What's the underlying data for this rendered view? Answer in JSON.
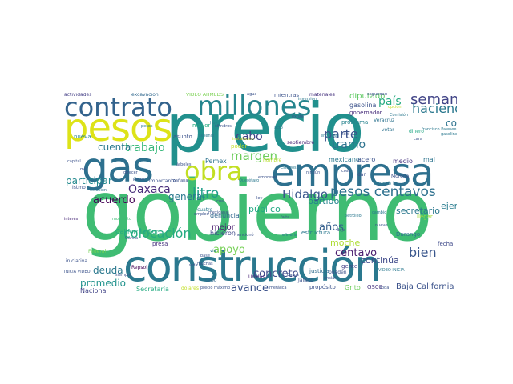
{
  "words": [
    {
      "text": "gobierno",
      "color": "#3fbc73"
    },
    {
      "text": "precio",
      "color": "#21908d"
    },
    {
      "text": "construcción",
      "color": "#2a788e"
    },
    {
      "text": "empresa",
      "color": "#2d708e"
    },
    {
      "text": "gas",
      "color": "#2d708e"
    },
    {
      "text": "pesos",
      "color": "#dde318"
    },
    {
      "text": "millones",
      "color": "#25858e"
    },
    {
      "text": "contrato",
      "color": "#33638d"
    },
    {
      "text": "obra",
      "color": "#c2df23"
    },
    {
      "text": "pesos centavos",
      "color": "#2d708e"
    },
    {
      "text": "litro",
      "color": "#1f9e89"
    },
    {
      "text": "Hidalgo",
      "color": "#39568c"
    },
    {
      "text": "colocación",
      "color": "#25ab82"
    },
    {
      "text": "margen",
      "color": "#6ccd5a"
    },
    {
      "text": "semana",
      "color": "#414487"
    },
    {
      "text": "haciendo",
      "color": "#2a788e"
    },
    {
      "text": "país",
      "color": "#25ab82"
    },
    {
      "text": "parte",
      "color": "#3b528b"
    },
    {
      "text": "tramo",
      "color": "#2c728e"
    },
    {
      "text": "trabajo",
      "color": "#35b779"
    },
    {
      "text": "cuenta",
      "color": "#2a788e"
    },
    {
      "text": "cabo",
      "color": "#404387"
    },
    {
      "text": "acuerdo",
      "color": "#440154"
    },
    {
      "text": "Oaxaca",
      "color": "#472c7a"
    },
    {
      "text": "general",
      "color": "#2a788e"
    },
    {
      "text": "participar",
      "color": "#23898e"
    },
    {
      "text": "corrupción",
      "color": "#2c728e"
    },
    {
      "text": "ejemplo",
      "color": "#287c8e"
    },
    {
      "text": "apoyo",
      "color": "#75d054"
    },
    {
      "text": "concreto",
      "color": "#3e4a89"
    },
    {
      "text": "centavo",
      "color": "#481a6c"
    },
    {
      "text": "bien",
      "color": "#39568c"
    },
    {
      "text": "deuda",
      "color": "#2a788e"
    },
    {
      "text": "promedio",
      "color": "#20928c"
    },
    {
      "text": "avance",
      "color": "#3b528b"
    },
    {
      "text": "años",
      "color": "#355f8d"
    },
    {
      "text": "moche",
      "color": "#addc30"
    },
    {
      "text": "secretario",
      "color": "#2a788e"
    },
    {
      "text": "partido",
      "color": "#25848e"
    },
    {
      "text": "público",
      "color": "#23a983"
    },
    {
      "text": "continúa",
      "color": "#3e4989"
    },
    {
      "text": "mejor",
      "color": "#481b6d"
    },
    {
      "text": "hicieron",
      "color": "#3f4889"
    },
    {
      "text": "denuncia",
      "color": "#31688e"
    },
    {
      "text": "Baja California",
      "color": "#3b528b"
    },
    {
      "text": "Grito",
      "color": "#6ccd5a"
    },
    {
      "text": "Secretaría",
      "color": "#25ab82"
    },
    {
      "text": "Nacional",
      "color": "#414487"
    },
    {
      "text": "Pemex",
      "color": "#2c728e"
    },
    {
      "text": "diputado",
      "color": "#5ec962"
    },
    {
      "text": "gasolina",
      "color": "#3b528b"
    },
    {
      "text": "gobernador",
      "color": "#472d7b"
    },
    {
      "text": "problema",
      "color": "#26828e"
    },
    {
      "text": "mexicano",
      "color": "#2a788e"
    },
    {
      "text": "medio",
      "color": "#46337f"
    },
    {
      "text": "mal",
      "color": "#2c738e"
    },
    {
      "text": "acero",
      "color": "#3b528b"
    },
    {
      "text": "llegar",
      "color": "#a0da39"
    },
    {
      "text": "fecha",
      "color": "#3e4989"
    },
    {
      "text": "Durango",
      "color": "#2d718e"
    },
    {
      "text": "gente",
      "color": "#433e85"
    },
    {
      "text": "justicia",
      "color": "#2f6c8e"
    },
    {
      "text": "mientras",
      "color": "#3b528b"
    },
    {
      "text": "estructura",
      "color": "#2a788e"
    },
    {
      "text": "mayor",
      "color": "#25ab82"
    },
    {
      "text": "nueva",
      "color": "#26828e"
    },
    {
      "text": "asunto",
      "color": "#3b528b"
    },
    {
      "text": "importante",
      "color": "#3b528b"
    },
    {
      "text": "septiembre",
      "color": "#482576"
    },
    {
      "text": "hombre",
      "color": "#b5de2b"
    },
    {
      "text": "poder",
      "color": "#c2df23"
    },
    {
      "text": "cuatro",
      "color": "#2a788e"
    },
    {
      "text": "presa",
      "color": "#46327e"
    },
    {
      "text": "servicio",
      "color": "#3fbc73"
    },
    {
      "text": "Federal",
      "color": "#73d056"
    },
    {
      "text": "iniciativa",
      "color": "#3b528b"
    },
    {
      "text": "Istmo",
      "color": "#3b528b"
    },
    {
      "text": "Repsol",
      "color": "#440154"
    },
    {
      "text": "cabo",
      "color": "#31688e"
    },
    {
      "text": "mexicana",
      "color": "#3b528b"
    },
    {
      "text": "Unidos",
      "color": "#482576"
    },
    {
      "text": "pueden",
      "color": "#3b528b"
    },
    {
      "text": "Jalisco",
      "color": "#3b528b"
    },
    {
      "text": "propósito",
      "color": "#3b528b"
    },
    {
      "text": "GS00",
      "color": "#46327e"
    },
    {
      "text": "Morena",
      "color": "#3b528b"
    },
    {
      "text": "Veracruz",
      "color": "#2c728e"
    },
    {
      "text": "Comisión",
      "color": "#2a788e"
    },
    {
      "text": "dinero",
      "color": "#22a884"
    },
    {
      "text": "votar",
      "color": "#2c728e"
    },
    {
      "text": "California Sur",
      "color": "#25ab82"
    },
    {
      "text": "interés",
      "color": "#482878"
    },
    {
      "text": "estación",
      "color": "#2c728e"
    },
    {
      "text": "actividades",
      "color": "#433e85"
    },
    {
      "text": "excavación",
      "color": "#31688e"
    },
    {
      "text": "materiales",
      "color": "#46327e"
    },
    {
      "text": "seguridad",
      "color": "#3b528b"
    },
    {
      "text": "inversión",
      "color": "#2a788e"
    },
    {
      "text": "opción",
      "color": "#c2df23"
    },
    {
      "text": "VIDEO AHMEDS",
      "color": "#7ad151"
    },
    {
      "text": "VIDEO INICIA",
      "color": "#2a788e"
    },
    {
      "text": "INICIA VIDEO",
      "color": "#3b528b"
    },
    {
      "text": "dólares",
      "color": "#c2df23"
    },
    {
      "text": "precio máximo",
      "color": "#3b528b"
    },
    {
      "text": "metálica",
      "color": "#3b528b"
    },
    {
      "text": "toda",
      "color": "#3b528b"
    },
    {
      "text": "Querétaro",
      "color": "#2a788e"
    },
    {
      "text": "vía",
      "color": "#2a788e"
    },
    {
      "text": "mañana",
      "color": "#3b528b"
    },
    {
      "text": "árboles",
      "color": "#3b528b"
    },
    {
      "text": "petróleo",
      "color": "#2a788e"
    },
    {
      "text": "cambio",
      "color": "#2a788e"
    },
    {
      "text": "nuevo",
      "color": "#3b528b"
    },
    {
      "text": "dar",
      "color": "#3b528b"
    },
    {
      "text": "cilindros",
      "color": "#3b528b"
    },
    {
      "text": "agua",
      "color": "#3b528b"
    },
    {
      "text": "acto",
      "color": "#2a788e"
    },
    {
      "text": "hoy",
      "color": "#2a788e"
    },
    {
      "text": "cara",
      "color": "#3b528b"
    },
    {
      "text": "García",
      "color": "#3b528b"
    },
    {
      "text": "francisco Pawnee",
      "color": "#2a788e"
    },
    {
      "text": "gasolinera",
      "color": "#2a788e"
    },
    {
      "text": "Casos",
      "color": "#3b528b"
    },
    {
      "text": "ensiar",
      "color": "#3b528b"
    },
    {
      "text": "muchas",
      "color": "#3b528b"
    },
    {
      "text": "empleo",
      "color": "#3b528b"
    },
    {
      "text": "mencionó",
      "color": "#3b528b"
    },
    {
      "text": "refinería",
      "color": "#2a788e"
    },
    {
      "text": "pesos",
      "color": "#2a788e"
    },
    {
      "text": "base",
      "color": "#3b528b"
    },
    {
      "text": "sexenio",
      "color": "#2a788e"
    },
    {
      "text": "siempre",
      "color": "#3b528b"
    },
    {
      "text": "entonces",
      "color": "#2a788e"
    },
    {
      "text": "momento",
      "color": "#3fbc73"
    },
    {
      "text": "Baja",
      "color": "#3b528b"
    },
    {
      "text": "instalación",
      "color": "#c2df23"
    },
    {
      "text": "falta",
      "color": "#3b528b"
    },
    {
      "text": "capital",
      "color": "#3b528b"
    },
    {
      "text": "Estados",
      "color": "#2a788e"
    },
    {
      "text": "ningún",
      "color": "#3b528b"
    },
    {
      "text": "pozos",
      "color": "#3b528b"
    },
    {
      "text": "vida",
      "color": "#3b528b"
    },
    {
      "text": "mil",
      "color": "#3b528b"
    },
    {
      "text": "cosa",
      "color": "#3b528b"
    },
    {
      "text": "ofrecer",
      "color": "#3b528b"
    },
    {
      "text": "empresas",
      "color": "#3b528b"
    },
    {
      "text": "proyecto",
      "color": "#2a788e"
    },
    {
      "text": "ley",
      "color": "#3b528b"
    },
    {
      "text": "cual",
      "color": "#3b528b"
    },
    {
      "text": "seis",
      "color": "#3b528b"
    },
    {
      "text": "existe",
      "color": "#3b528b"
    },
    {
      "text": "cuyo",
      "color": "#3b528b"
    }
  ]
}
